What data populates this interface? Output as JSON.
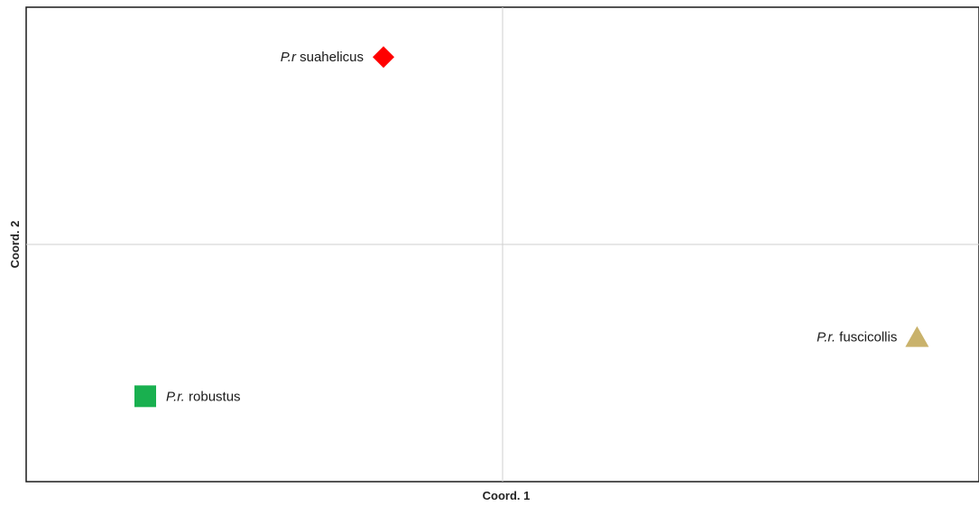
{
  "chart_data": {
    "type": "scatter",
    "xlabel": "Coord. 1",
    "ylabel": "Coord. 2",
    "xlim": [
      -1,
      1
    ],
    "ylim": [
      -1,
      1
    ],
    "grid": "zero-lines",
    "points": [
      {
        "abbr": "P.r",
        "name": "suahelicus",
        "x": -0.25,
        "y": 0.79,
        "marker": "diamond",
        "color": "#ff0000",
        "label_side": "left"
      },
      {
        "abbr": "P.r.",
        "name": "fuscicollis",
        "x": 0.87,
        "y": -0.39,
        "marker": "triangle",
        "color": "#c9b26b",
        "label_side": "left"
      },
      {
        "abbr": "P.r.",
        "name": "robustus",
        "x": -0.75,
        "y": -0.64,
        "marker": "square",
        "color": "#19b04f",
        "label_side": "right"
      }
    ]
  }
}
